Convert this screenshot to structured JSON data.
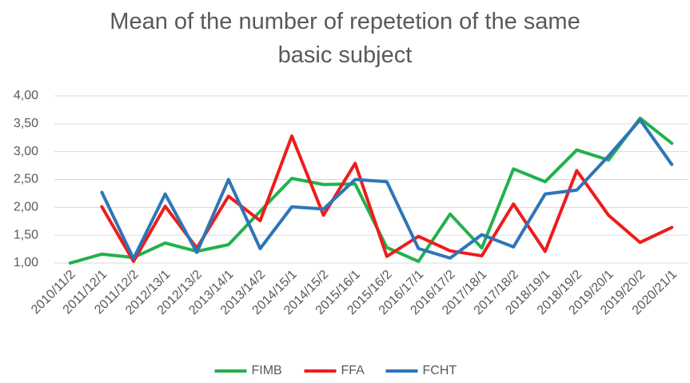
{
  "chart_data": {
    "type": "line",
    "title": "Mean of the number of repetetion of the same basic subject",
    "categories": [
      "2010/11/2",
      "2011/12/1",
      "2011/12/2",
      "2012/13/1",
      "2012/13/2",
      "2013/14/1",
      "2013/14/2",
      "2014/15/1",
      "2014/15/2",
      "2015/16/1",
      "2015/16/2",
      "2016/17/1",
      "2016/17/2",
      "2017/18/1",
      "2017/18/2",
      "2018/19/1",
      "2018/19/2",
      "2019/20/1",
      "2019/20/2",
      "2020/21/1"
    ],
    "series": [
      {
        "name": "FIMB",
        "color": "#22b14c",
        "values": [
          1.0,
          1.16,
          1.1,
          1.36,
          1.21,
          1.33,
          1.93,
          2.52,
          2.41,
          2.42,
          1.28,
          1.03,
          1.88,
          1.27,
          2.69,
          2.46,
          3.03,
          2.85,
          3.6,
          3.15
        ]
      },
      {
        "name": "FFA",
        "color": "#ee1c1c",
        "values": [
          null,
          2.01,
          1.03,
          2.02,
          1.27,
          2.2,
          1.76,
          3.28,
          1.86,
          2.79,
          1.12,
          1.48,
          1.22,
          1.13,
          2.06,
          1.21,
          2.66,
          1.86,
          1.37,
          1.64
        ]
      },
      {
        "name": "FCHT",
        "color": "#2e75b6",
        "values": [
          null,
          2.27,
          1.08,
          2.24,
          1.19,
          2.5,
          1.26,
          2.01,
          1.97,
          2.5,
          2.46,
          1.26,
          1.09,
          1.51,
          1.29,
          2.24,
          2.31,
          2.92,
          3.57,
          2.77
        ]
      }
    ],
    "ylim": [
      1,
      4
    ],
    "yticks": [
      {
        "value": 1,
        "label": "1,00"
      },
      {
        "value": 1.5,
        "label": "1,50"
      },
      {
        "value": 2,
        "label": "2,00"
      },
      {
        "value": 2.5,
        "label": "2,50"
      },
      {
        "value": 3,
        "label": "3,00"
      },
      {
        "value": 3.5,
        "label": "3,50"
      },
      {
        "value": 4,
        "label": "4,00"
      }
    ],
    "grid": true,
    "legend": "bottom"
  }
}
